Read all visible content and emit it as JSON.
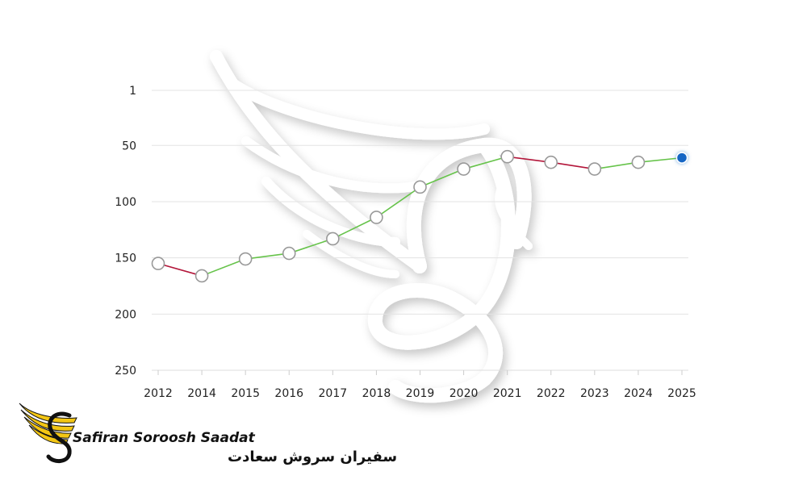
{
  "chart_data": {
    "type": "line",
    "x": [
      "2012",
      "2014",
      "2015",
      "2016",
      "2017",
      "2018",
      "2019",
      "2020",
      "2021",
      "2022",
      "2023",
      "2024",
      "2025"
    ],
    "values": [
      155,
      166,
      151,
      146,
      133,
      114,
      87,
      71,
      60,
      65,
      71,
      65,
      61
    ],
    "y_ticks": [
      1,
      50,
      100,
      150,
      200,
      250
    ],
    "ylim": [
      1,
      250
    ],
    "y_inverted": true,
    "grid": true,
    "title": "",
    "xlabel": "",
    "ylabel": "",
    "colors": {
      "rank_improved": "#66c34a",
      "rank_worsened": "#b3163a",
      "latest_point": "#1566c4",
      "point_stroke": "#999999",
      "grid": "#e3e3e3"
    }
  },
  "logo": {
    "name_en": "Safiran Soroosh Saadat",
    "name_fa": "سفیران سروش سعادت",
    "colors": {
      "wing": "#f3c614",
      "ink": "#111111"
    }
  }
}
